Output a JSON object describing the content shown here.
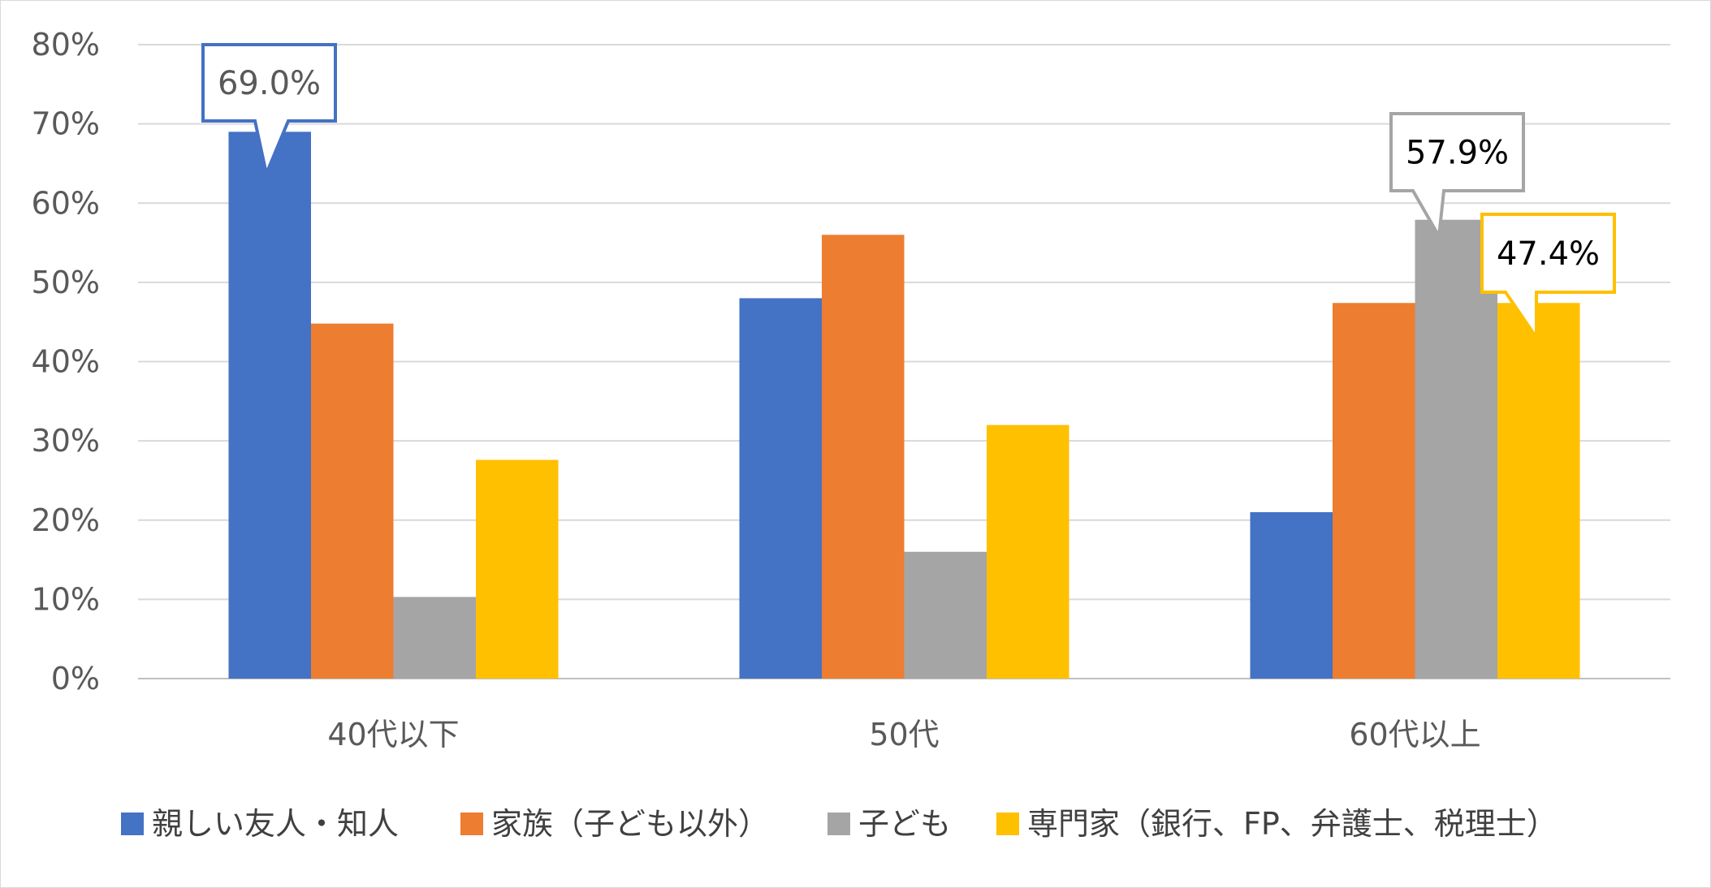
{
  "chart_data": {
    "type": "bar",
    "categories": [
      "40代以下",
      "50代",
      "60代以上"
    ],
    "series": [
      {
        "name": "親しい友人・知人",
        "color": "#4472C4",
        "values": [
          69.0,
          48.0,
          21.0
        ]
      },
      {
        "name": "家族（子ども以外）",
        "color": "#ED7D31",
        "values": [
          44.8,
          56.0,
          47.4
        ]
      },
      {
        "name": "子ども",
        "color": "#A5A5A5",
        "values": [
          10.3,
          16.0,
          57.9
        ]
      },
      {
        "name": "専門家（銀行、FP、弁護士、税理士）",
        "color": "#FFC000",
        "values": [
          27.6,
          32.0,
          47.4
        ]
      }
    ],
    "ylim": [
      0,
      80
    ],
    "yticks": [
      "0%",
      "10%",
      "20%",
      "30%",
      "40%",
      "50%",
      "60%",
      "70%",
      "80%"
    ],
    "grid": true,
    "legend": "bottom",
    "callouts": [
      {
        "text": "69.0%",
        "series": 0,
        "category": 0,
        "border": "#4472C4",
        "text_color": "#595959"
      },
      {
        "text": "57.9%",
        "series": 2,
        "category": 2,
        "border": "#A5A5A5",
        "text_color": "#000000"
      },
      {
        "text": "47.4%",
        "series": 3,
        "category": 2,
        "border": "#FFC000",
        "text_color": "#000000"
      }
    ]
  }
}
